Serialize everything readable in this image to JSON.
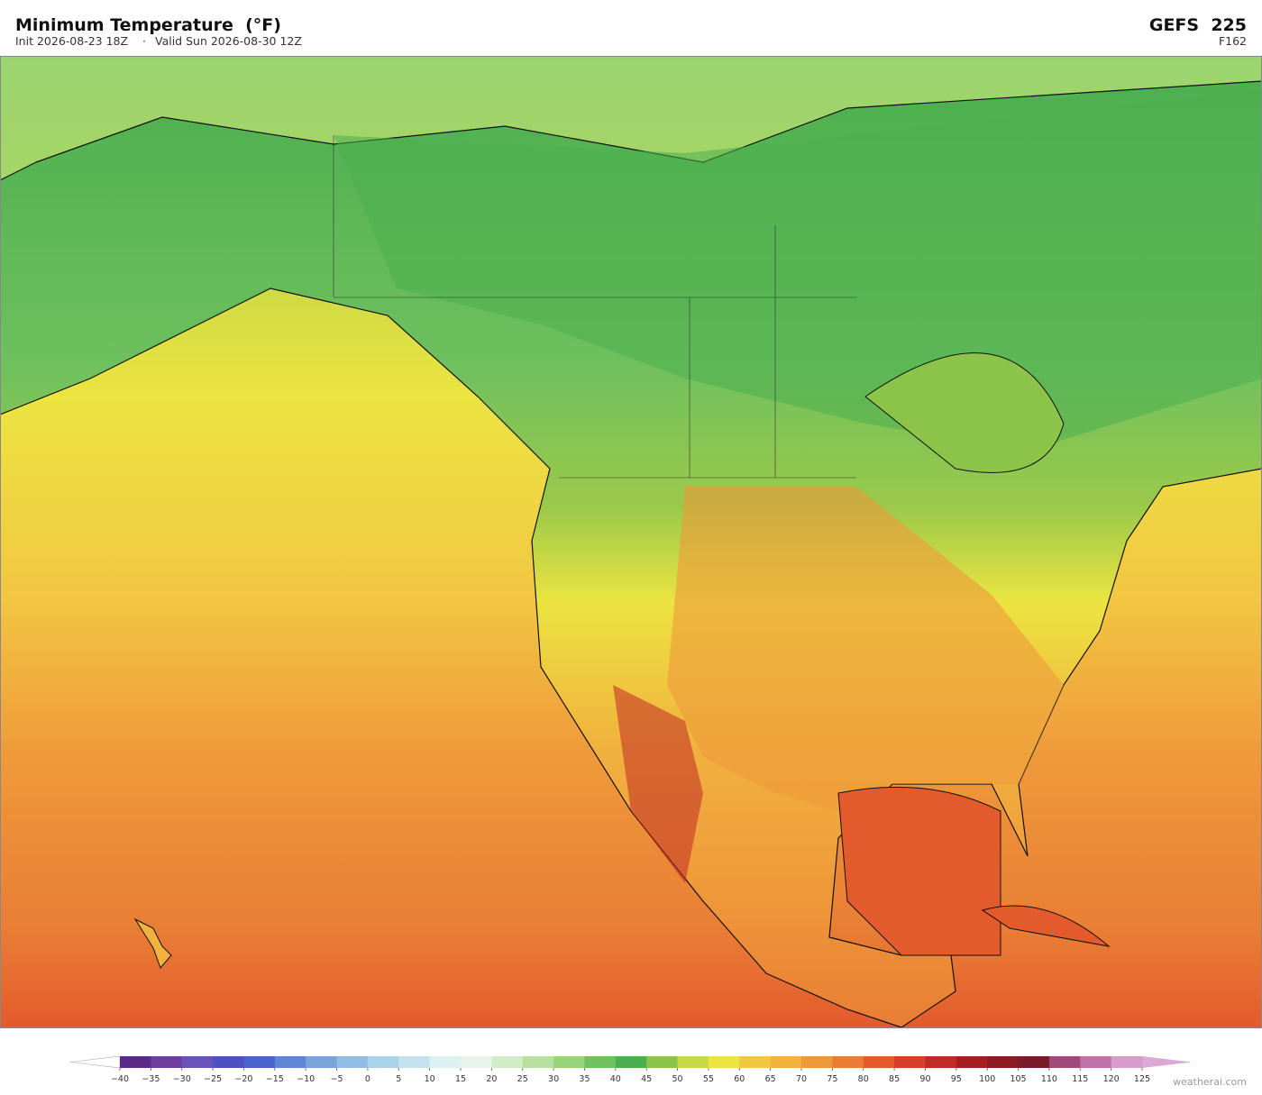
{
  "header": {
    "title": "Minimum Temperature  (°F)",
    "init": "Init 2026-08-23 18Z",
    "separator": "·",
    "valid": "Valid Sun 2026-08-30 12Z",
    "model": "GEFS  225",
    "forecast_hour": "F162"
  },
  "colorbar": {
    "ticks": [
      {
        "value": -40,
        "label": "−40"
      },
      {
        "value": -35,
        "label": "−35"
      },
      {
        "value": -30,
        "label": "−30"
      },
      {
        "value": -25,
        "label": "−25"
      },
      {
        "value": -20,
        "label": "−20"
      },
      {
        "value": -15,
        "label": "−15"
      },
      {
        "value": -10,
        "label": "−10"
      },
      {
        "value": -5,
        "label": "−5"
      },
      0,
      5,
      10,
      15,
      20,
      25,
      30,
      35,
      40,
      45,
      50,
      55,
      60,
      65,
      70,
      75,
      80,
      85,
      90,
      95,
      100,
      105,
      110,
      115,
      120,
      125
    ],
    "colors": [
      "#5b2a86",
      "#6f3fa0",
      "#6a52b8",
      "#4f4fc4",
      "#4a62cc",
      "#5f86d4",
      "#7aa3dc",
      "#90bde3",
      "#a8d3ea",
      "#c4e3ef",
      "#ddf0f2",
      "#e6f4ea",
      "#d3ecc8",
      "#b8e0a0",
      "#98d47c",
      "#6fc05e",
      "#4caf4f",
      "#8cc44a",
      "#c9d845",
      "#ece441",
      "#f2c842",
      "#f1b23e",
      "#ef9a3a",
      "#e97d35",
      "#e35a2c",
      "#d83e2a",
      "#c12a25",
      "#a61e23",
      "#8c1a22",
      "#7a1a2a",
      "#a04a7a",
      "#c172a8",
      "#d69ccb"
    ],
    "under_color": "#ffffff",
    "over_color": "#dca8d4"
  },
  "credit": "weatherai.com"
}
